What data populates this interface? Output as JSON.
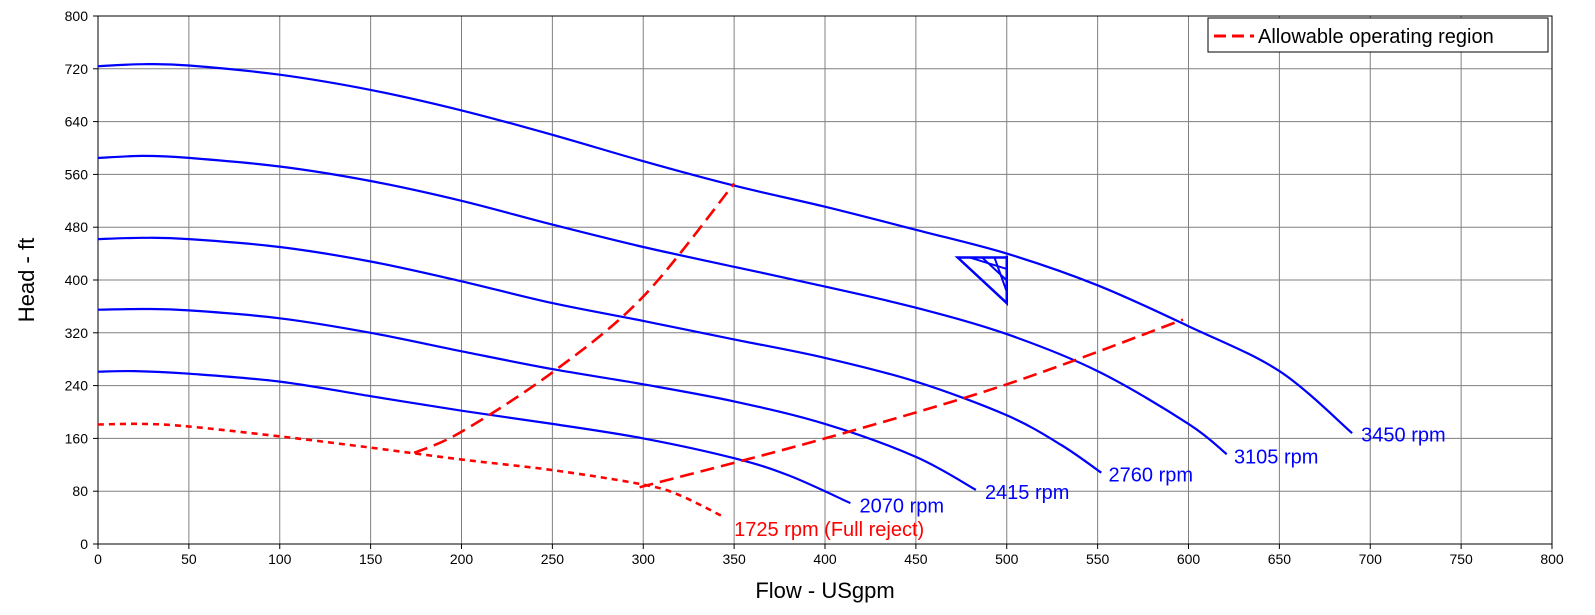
{
  "chart_data": {
    "type": "line",
    "title": "",
    "xlabel": "Flow - USgpm",
    "ylabel": "Head - ft",
    "xlim": [
      0,
      800
    ],
    "ylim": [
      0,
      800
    ],
    "x_ticks": [
      0,
      50,
      100,
      150,
      200,
      250,
      300,
      350,
      400,
      450,
      500,
      550,
      600,
      650,
      700,
      750,
      800
    ],
    "y_ticks": [
      0,
      80,
      160,
      240,
      320,
      400,
      480,
      560,
      640,
      720,
      800
    ],
    "grid": true,
    "legend_position": "top-right",
    "legend": [
      {
        "label": "Allowable operating region",
        "color": "#ff0000",
        "style": "dashed"
      }
    ],
    "colors": {
      "speed_curves": "#0000ff",
      "reject_curve": "#ff0000",
      "region": "#ff0000",
      "grid": "#808080",
      "marker": "#0000ff"
    },
    "series": [
      {
        "name": "3450 rpm",
        "color": "#0000ff",
        "style": "solid",
        "x": [
          0,
          25,
          50,
          100,
          150,
          200,
          250,
          300,
          350,
          400,
          450,
          500,
          550,
          600,
          650,
          690
        ],
        "y": [
          724,
          727,
          725,
          711,
          688,
          657,
          620,
          580,
          543,
          511,
          476,
          440,
          392,
          330,
          262,
          168
        ]
      },
      {
        "name": "3105 rpm",
        "color": "#0000ff",
        "style": "solid",
        "x": [
          0,
          25,
          50,
          100,
          150,
          200,
          250,
          300,
          350,
          400,
          450,
          500,
          550,
          600,
          621
        ],
        "y": [
          585,
          588,
          585,
          572,
          550,
          520,
          484,
          450,
          420,
          390,
          358,
          318,
          262,
          182,
          136
        ]
      },
      {
        "name": "2760 rpm",
        "color": "#0000ff",
        "style": "solid",
        "x": [
          0,
          25,
          50,
          100,
          150,
          200,
          250,
          300,
          350,
          400,
          450,
          500,
          530,
          552
        ],
        "y": [
          462,
          464,
          462,
          450,
          428,
          398,
          365,
          338,
          310,
          282,
          246,
          195,
          150,
          108
        ]
      },
      {
        "name": "2415 rpm",
        "color": "#0000ff",
        "style": "solid",
        "x": [
          0,
          25,
          50,
          100,
          150,
          200,
          250,
          300,
          350,
          400,
          450,
          483
        ],
        "y": [
          355,
          356,
          354,
          342,
          320,
          292,
          265,
          242,
          216,
          182,
          132,
          82
        ]
      },
      {
        "name": "2070 rpm",
        "color": "#0000ff",
        "style": "solid",
        "x": [
          0,
          20,
          50,
          100,
          150,
          200,
          250,
          300,
          350,
          380,
          414
        ],
        "y": [
          261,
          262,
          258,
          246,
          224,
          202,
          182,
          160,
          130,
          104,
          62
        ]
      },
      {
        "name": "1725 rpm (Full reject)",
        "color": "#ff0000",
        "style": "dotted",
        "x": [
          0,
          25,
          50,
          100,
          150,
          200,
          250,
          300,
          320,
          345
        ],
        "y": [
          181,
          182,
          178,
          163,
          146,
          128,
          112,
          90,
          74,
          40
        ]
      },
      {
        "name": "Allowable operating region",
        "color": "#ff0000",
        "style": "dashed",
        "x": [
          174,
          200,
          250,
          300,
          350
        ],
        "y": [
          138,
          170,
          260,
          375,
          546
        ]
      },
      {
        "name": "Allowable operating region",
        "color": "#ff0000",
        "style": "dashed",
        "x": [
          298,
          400,
          500,
          597
        ],
        "y": [
          86,
          160,
          242,
          340
        ]
      }
    ],
    "annotations": [
      {
        "text": "3450 rpm",
        "x": 695,
        "y": 155,
        "color": "#0000ff"
      },
      {
        "text": "3105 rpm",
        "x": 625,
        "y": 122,
        "color": "#0000ff"
      },
      {
        "text": "2760 rpm",
        "x": 556,
        "y": 95,
        "color": "#0000ff"
      },
      {
        "text": "2415 rpm",
        "x": 488,
        "y": 68,
        "color": "#0000ff"
      },
      {
        "text": "2070 rpm",
        "x": 419,
        "y": 48,
        "color": "#0000ff"
      },
      {
        "text": "1725 rpm (Full reject)",
        "x": 350,
        "y": 12,
        "color": "#ff0000"
      }
    ],
    "marker": {
      "name": "design-point-triangle",
      "x": 500,
      "y": 437,
      "y_bottom": 365,
      "x_left": 473,
      "y_top": 434
    }
  }
}
